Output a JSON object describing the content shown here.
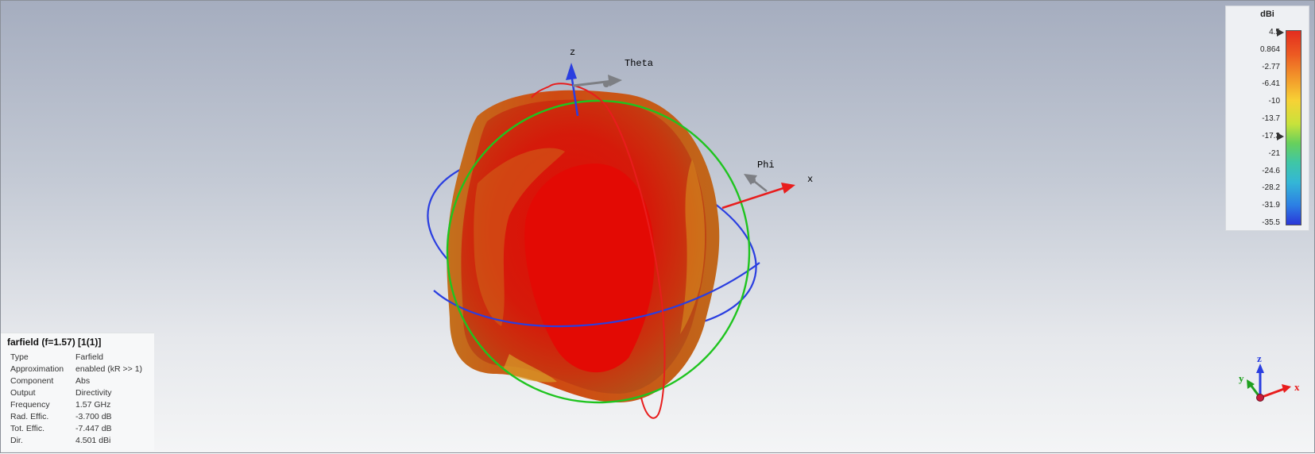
{
  "scene": {
    "axes": {
      "z_label": "z",
      "x_label": "x",
      "theta_label": "Theta",
      "phi_label": "Phi"
    }
  },
  "colorbar": {
    "unit": "dBi",
    "ticks": [
      "4.5",
      "0.864",
      "-2.77",
      "-6.41",
      "-10",
      "-13.7",
      "-17.3",
      "-21",
      "-24.6",
      "-28.2",
      "-31.9",
      "-35.5"
    ],
    "max": 4.5,
    "min": -35.5,
    "marker_upper": 4.5,
    "marker_lower": -17.3,
    "colors": {
      "high": "#e32d1f",
      "low": "#2a36d8"
    }
  },
  "info": {
    "title": "farfield (f=1.57) [1(1)]",
    "rows": [
      {
        "key": "Type",
        "value": "Farfield"
      },
      {
        "key": "Approximation",
        "value": "enabled (kR >> 1)"
      },
      {
        "key": "Component",
        "value": "Abs"
      },
      {
        "key": "Output",
        "value": "Directivity"
      },
      {
        "key": "Frequency",
        "value": "1.57 GHz"
      },
      {
        "key": "Rad. Effic.",
        "value": "-3.700 dB"
      },
      {
        "key": "Tot. Effic.",
        "value": "-7.447 dB"
      },
      {
        "key": "Dir.",
        "value": "4.501 dBi"
      }
    ]
  },
  "orientation": {
    "z": "z",
    "y": "y",
    "x": "x"
  }
}
